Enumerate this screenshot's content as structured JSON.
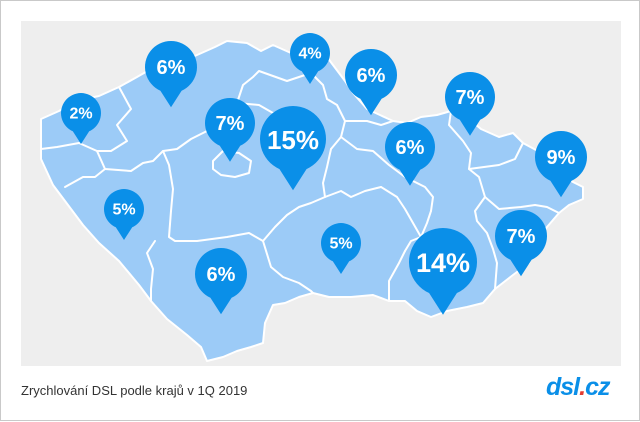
{
  "caption": "Zrychlování DSL podle krajů v 1Q 2019",
  "logo": {
    "text_main": "dsl",
    "text_dot": ".",
    "text_tld": "cz"
  },
  "colors": {
    "map_fill": "#9ccbf7",
    "border": "#ffffff",
    "pin": "#0a8fe8",
    "panel": "#eeeeee",
    "logo": "#0a8fe8",
    "logo_dot": "#e33b30"
  },
  "regions": [
    {
      "id": "karlovarsky",
      "value": "2%"
    },
    {
      "id": "ustecky",
      "value": "6%"
    },
    {
      "id": "liberecky",
      "value": "4%"
    },
    {
      "id": "kralovehradecky",
      "value": "6%"
    },
    {
      "id": "stredocesky",
      "value": "7%"
    },
    {
      "id": "praha",
      "value": "15%"
    },
    {
      "id": "pardubicky",
      "value": "6%"
    },
    {
      "id": "olomoucky",
      "value": "7%"
    },
    {
      "id": "moravskoslezsky",
      "value": "9%"
    },
    {
      "id": "plzensky",
      "value": "5%"
    },
    {
      "id": "vysocina",
      "value": "5%"
    },
    {
      "id": "jihomoravsky",
      "value": "14%"
    },
    {
      "id": "zlinsky",
      "value": "7%"
    },
    {
      "id": "jihocesky",
      "value": "6%"
    }
  ]
}
